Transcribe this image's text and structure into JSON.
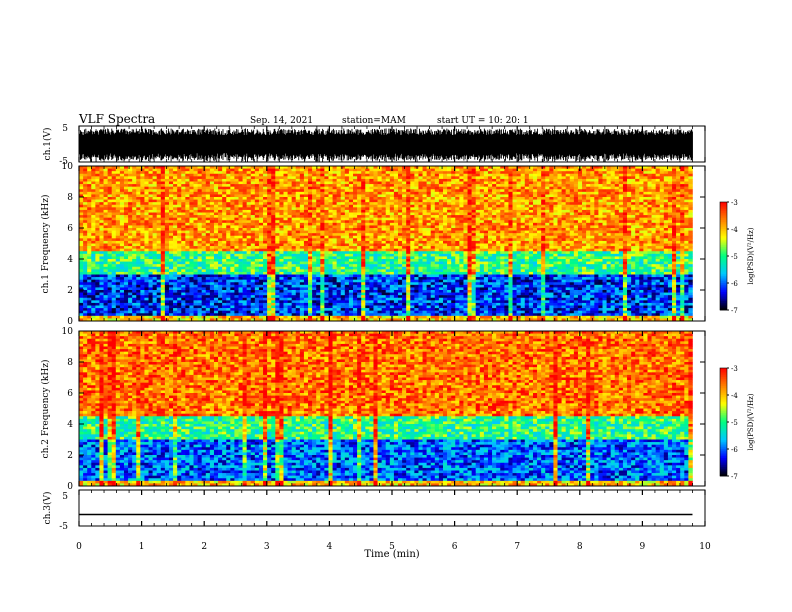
{
  "header": {
    "title": "VLF Spectra",
    "date": "Sep. 14, 2021",
    "station": "station=MAM",
    "start": "start  UT =   10: 20: 1"
  },
  "chart_data": [
    {
      "type": "line",
      "panel": "ch1-waveform",
      "ylabel": "ch.1(V)",
      "ylim": [
        -5,
        5
      ],
      "yticks": [
        "5",
        "-5"
      ],
      "x_range_min": [
        0,
        10
      ],
      "description_values": "dense broadband waveform filling roughly -4 to 4 V across 0 to 9.8 min"
    },
    {
      "type": "heatmap",
      "panel": "ch1-spectrogram",
      "ylabel": "ch.1 Frequency (kHz)",
      "ylim": [
        0,
        10
      ],
      "yticks": [
        "0",
        "2",
        "4",
        "6",
        "8",
        "10"
      ],
      "colorbar": {
        "label": "log(PSD)(V²/Hz)",
        "range": [
          -7,
          -3
        ],
        "ticks": [
          "-3",
          "-4",
          "-5",
          "-6",
          "-7"
        ]
      },
      "bands_kHz_logpsd": [
        {
          "f": [
            0,
            0.4
          ],
          "value": -4.0
        },
        {
          "f": [
            0.4,
            3.0
          ],
          "value": -6.2
        },
        {
          "f": [
            3.0,
            4.5
          ],
          "value": -5.0
        },
        {
          "f": [
            4.5,
            10
          ],
          "value": -3.8
        }
      ]
    },
    {
      "type": "heatmap",
      "panel": "ch2-spectrogram",
      "ylabel": "ch.2 Frequency (kHz)",
      "ylim": [
        0,
        10
      ],
      "yticks": [
        "0",
        "2",
        "4",
        "6",
        "8",
        "10"
      ],
      "colorbar": {
        "label": "log(PSD)(V²/Hz)",
        "range": [
          -7,
          -3
        ],
        "ticks": [
          "-3",
          "-4",
          "-5",
          "-6",
          "-7"
        ]
      },
      "bands_kHz_logpsd": [
        {
          "f": [
            0,
            0.4
          ],
          "value": -4.0
        },
        {
          "f": [
            0.4,
            3.0
          ],
          "value": -6.0
        },
        {
          "f": [
            3.0,
            4.5
          ],
          "value": -5.0
        },
        {
          "f": [
            4.5,
            10
          ],
          "value": -3.6
        }
      ]
    },
    {
      "type": "line",
      "panel": "ch3-waveform",
      "ylabel": "ch.3(V)",
      "ylim": [
        -5,
        5
      ],
      "yticks": [
        "5",
        "-5"
      ],
      "x": [
        0,
        9.8
      ],
      "y": [
        -1.8,
        -1.8
      ]
    }
  ],
  "xaxis": {
    "label": "Time (min)",
    "ticks": [
      "0",
      "1",
      "2",
      "3",
      "4",
      "5",
      "6",
      "7",
      "8",
      "9",
      "10"
    ],
    "range": [
      0,
      10
    ],
    "data_end": 9.8
  },
  "colors": {
    "colormap": [
      "#000000",
      "#0000ff",
      "#00c8ff",
      "#00ff80",
      "#ffff00",
      "#ff8000",
      "#ff0000",
      "#ffffff"
    ]
  }
}
